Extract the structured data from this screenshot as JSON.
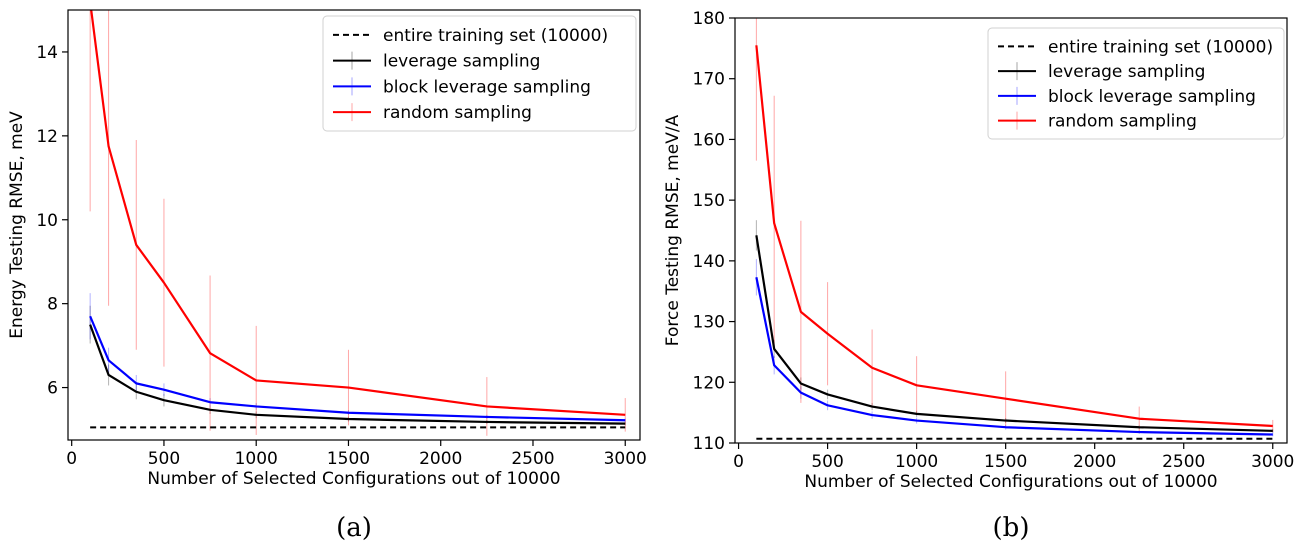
{
  "chart_data": [
    {
      "type": "line",
      "panel_label": "(a)",
      "xlabel": "Number of Selected Configurations out of 10000",
      "ylabel": "Energy Testing RMSE, meV",
      "xlim": [
        -20,
        3080
      ],
      "ylim": [
        4.75,
        15.0
      ],
      "xticks": [
        0,
        500,
        1000,
        1500,
        2000,
        2500,
        3000
      ],
      "yticks": [
        6,
        8,
        10,
        12,
        14
      ],
      "grid": false,
      "legend_position": "top-right",
      "x": [
        100,
        200,
        350,
        500,
        750,
        1000,
        1500,
        2250,
        3000
      ],
      "baseline": {
        "name": "entire training set (10000)",
        "color": "#000000",
        "style": "dashed",
        "value": 5.05
      },
      "series": [
        {
          "name": "leverage sampling",
          "color": "#000000",
          "values": [
            7.5,
            6.3,
            5.9,
            5.7,
            5.47,
            5.35,
            5.25,
            5.18,
            5.14
          ],
          "err": [
            0.45,
            0.25,
            0.18,
            0.15,
            0.1,
            0.08,
            0.06,
            0.05,
            0.04
          ]
        },
        {
          "name": "block leverage sampling",
          "color": "#0000ff",
          "values": [
            7.7,
            6.65,
            6.1,
            5.95,
            5.65,
            5.55,
            5.4,
            5.3,
            5.22
          ],
          "err": [
            0.55,
            0.3,
            0.2,
            0.15,
            0.1,
            0.08,
            0.06,
            0.05,
            0.04
          ]
        },
        {
          "name": "random sampling",
          "color": "#ff0000",
          "values": [
            15.2,
            11.75,
            9.4,
            8.5,
            6.82,
            6.17,
            6.0,
            5.55,
            5.35
          ],
          "err": [
            5.0,
            3.8,
            2.5,
            2.0,
            1.85,
            1.3,
            0.9,
            0.7,
            0.4
          ]
        }
      ]
    },
    {
      "type": "line",
      "panel_label": "(b)",
      "xlabel": "Number of Selected Configurations out of 10000",
      "ylabel": "Force Testing RMSE, meV/A",
      "xlim": [
        -20,
        3080
      ],
      "ylim": [
        110,
        180
      ],
      "xticks": [
        0,
        500,
        1000,
        1500,
        2000,
        2500,
        3000
      ],
      "yticks": [
        110,
        120,
        130,
        140,
        150,
        160,
        170,
        180
      ],
      "grid": false,
      "legend_position": "top-right",
      "x": [
        100,
        200,
        350,
        500,
        750,
        1000,
        1500,
        2250,
        3000
      ],
      "baseline": {
        "name": "entire training set (10000)",
        "color": "#000000",
        "style": "dashed",
        "value": 110.7
      },
      "series": [
        {
          "name": "leverage sampling",
          "color": "#000000",
          "values": [
            144.2,
            125.5,
            119.8,
            118.0,
            116.0,
            114.8,
            113.7,
            112.6,
            112.0
          ],
          "err": [
            2.5,
            1.5,
            1.0,
            0.8,
            0.6,
            0.5,
            0.4,
            0.3,
            0.3
          ]
        },
        {
          "name": "block leverage sampling",
          "color": "#0000ff",
          "values": [
            137.3,
            122.8,
            118.3,
            116.2,
            114.6,
            113.7,
            112.6,
            111.8,
            111.4
          ],
          "err": [
            3.0,
            1.5,
            1.0,
            0.8,
            0.6,
            0.5,
            0.4,
            0.3,
            0.3
          ]
        },
        {
          "name": "random sampling",
          "color": "#ff0000",
          "values": [
            175.5,
            146.2,
            131.6,
            128.0,
            122.4,
            119.5,
            117.3,
            114.0,
            112.8
          ],
          "err": [
            19.0,
            21.0,
            15.0,
            8.5,
            6.3,
            4.8,
            4.5,
            2.0,
            1.0
          ]
        }
      ]
    }
  ]
}
